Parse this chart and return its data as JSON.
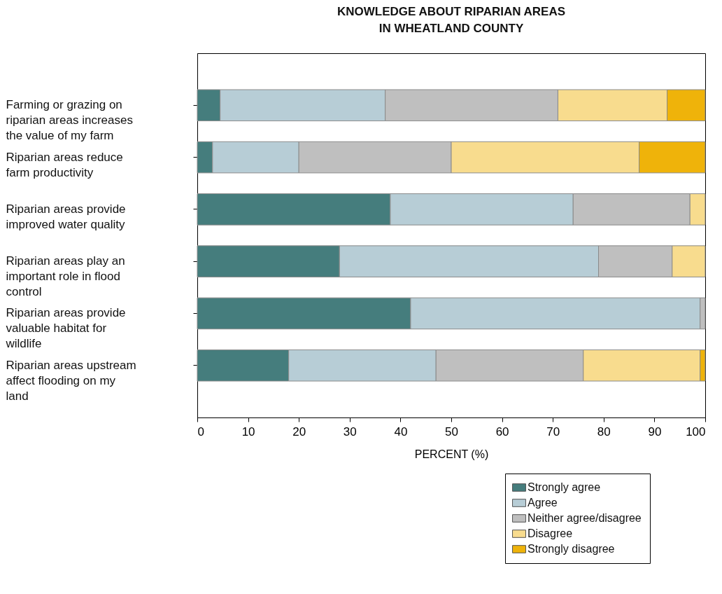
{
  "chart_data": {
    "type": "bar",
    "orientation": "horizontal",
    "stacked": true,
    "title": "KNOWLEDGE ABOUT RIPARIAN AREAS IN WHEATLAND COUNTY",
    "xlabel": "PERCENT (%)",
    "categories": [
      "Farming or grazing on riparian areas increases the value of my farm",
      "Riparian areas reduce farm productivity",
      "Riparian areas provide improved water quality",
      "Riparian areas play an important role in flood control",
      "Riparian areas provide valuable habitat for wildlife",
      "Riparian areas upstream affect flooding on my land"
    ],
    "series": [
      {
        "name": "Strongly agree",
        "color": "#457d7d",
        "values": [
          4.5,
          3,
          38,
          28,
          42,
          18
        ]
      },
      {
        "name": "Agree",
        "color": "#b7cdd6",
        "values": [
          32.5,
          17,
          36,
          51,
          57,
          29
        ]
      },
      {
        "name": "Neither agree/disagree",
        "color": "#bfbfbf",
        "values": [
          34,
          30,
          23,
          14.5,
          1,
          29
        ]
      },
      {
        "name": "Disagree",
        "color": "#f8dc8e",
        "values": [
          21.5,
          37,
          3,
          6.5,
          0,
          23
        ]
      },
      {
        "name": "Strongly disagree",
        "color": "#efb30a",
        "values": [
          7.5,
          13,
          0,
          0,
          0,
          1
        ]
      }
    ],
    "xlim": [
      0,
      100
    ],
    "xticks": [
      0,
      10,
      20,
      30,
      40,
      50,
      60,
      70,
      80,
      90,
      100
    ],
    "grid": false,
    "legend": "bottom right"
  }
}
